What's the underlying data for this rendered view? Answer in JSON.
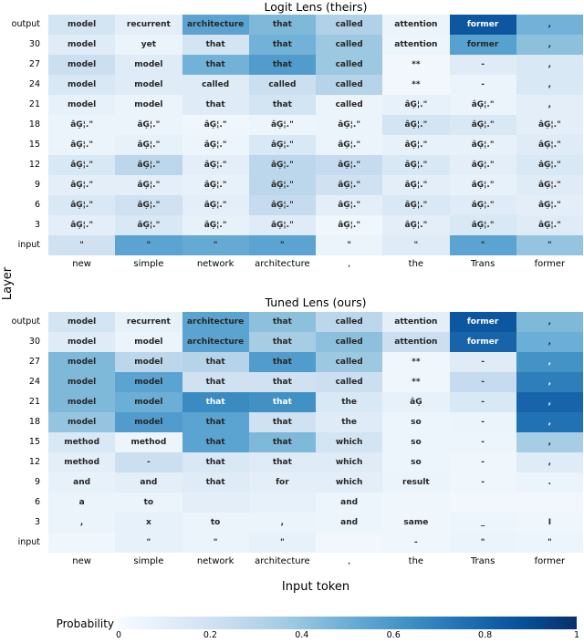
{
  "figure": {
    "ylabel": "Layer",
    "xlabel": "Input token",
    "colorbar": {
      "label": "Probability",
      "ticks": [
        "0",
        "0.2",
        "0.4",
        "0.6",
        "0.8",
        "1"
      ]
    },
    "blues_anchors": [
      "#f7fbff",
      "#deebf7",
      "#c6dbef",
      "#9ecae1",
      "#6baed6",
      "#4292c6",
      "#2171b5",
      "#08519c",
      "#08306b"
    ],
    "text_dark": "#262626",
    "text_light": "#ffffff"
  },
  "chart_data": [
    {
      "type": "heatmap",
      "title": "Logit Lens (theirs)",
      "colormap": "Blues",
      "vmin": 0,
      "vmax": 1,
      "rows": [
        "output",
        "30",
        "27",
        "24",
        "21",
        "18",
        "15",
        "12",
        "9",
        "6",
        "3",
        "input"
      ],
      "columns": [
        "new",
        "simple",
        "network",
        "architecture",
        ",",
        "the",
        "Trans",
        "former"
      ],
      "cells": [
        [
          "model",
          "recurrent",
          "architecture",
          "that",
          "called",
          "attention",
          "former",
          ","
        ],
        [
          "model",
          "yet",
          "that",
          "that",
          "called",
          "attention",
          "former",
          ","
        ],
        [
          "model",
          "model",
          "that",
          "that",
          "called",
          "**",
          "-",
          ","
        ],
        [
          "model",
          "model",
          "called",
          "called",
          "called",
          "**",
          "-",
          ","
        ],
        [
          "model",
          "model",
          "that",
          "that",
          "called",
          "âĢ¦.\"",
          "âĢ¦.\"",
          ","
        ],
        [
          "âĢ¦.\"",
          "âĢ¦.\"",
          "âĢ¦.\"",
          "âĢ¦.\"",
          "âĢ¦.\"",
          "âĢ¦.\"",
          "âĢ¦.\"",
          "âĢ¦.\""
        ],
        [
          "âĢ¦.\"",
          "âĢ¦.\"",
          "âĢ¦.\"",
          "âĢ¦.\"",
          "âĢ¦.\"",
          "âĢ¦.\"",
          "âĢ¦.\"",
          "âĢ¦.\""
        ],
        [
          "âĢ¦.\"",
          "âĢ¦.\"",
          "âĢ¦.\"",
          "âĢ¦.\"",
          "âĢ¦.\"",
          "âĢ¦.\"",
          "âĢ¦.\"",
          "âĢ¦.\""
        ],
        [
          "âĢ¦.\"",
          "âĢ¦.\"",
          "âĢ¦.\"",
          "âĢ¦.\"",
          "âĢ¦.\"",
          "âĢ¦.\"",
          "âĢ¦.\"",
          "âĢ¦.\""
        ],
        [
          "âĢ¦.\"",
          "âĢ¦.\"",
          "âĢ¦.\"",
          "âĢ¦.\"",
          "âĢ¦.\"",
          "âĢ¦.\"",
          "âĢ¦.\"",
          "âĢ¦.\""
        ],
        [
          "âĢ¦.\"",
          "âĢ¦.\"",
          "âĢ¦.\"",
          "âĢ¦.\"",
          "âĢ¦.\"",
          "âĢ¦.\"",
          "âĢ¦.\"",
          "âĢ¦.\""
        ],
        [
          "\"",
          "\"",
          "\"",
          "\"",
          "\"",
          "\"",
          "\"",
          "\""
        ]
      ],
      "values": [
        [
          0.18,
          0.1,
          0.55,
          0.45,
          0.32,
          0.06,
          0.85,
          0.48
        ],
        [
          0.12,
          0.06,
          0.18,
          0.48,
          0.38,
          0.05,
          0.56,
          0.42
        ],
        [
          0.22,
          0.12,
          0.48,
          0.58,
          0.38,
          0.03,
          0.12,
          0.15
        ],
        [
          0.15,
          0.12,
          0.12,
          0.22,
          0.3,
          0.03,
          0.06,
          0.15
        ],
        [
          0.08,
          0.06,
          0.12,
          0.18,
          0.06,
          0.08,
          0.06,
          0.1
        ],
        [
          0.06,
          0.06,
          0.04,
          0.05,
          0.06,
          0.18,
          0.15,
          0.1
        ],
        [
          0.06,
          0.08,
          0.05,
          0.15,
          0.06,
          0.08,
          0.08,
          0.12
        ],
        [
          0.15,
          0.28,
          0.1,
          0.28,
          0.25,
          0.15,
          0.1,
          0.15
        ],
        [
          0.1,
          0.1,
          0.08,
          0.28,
          0.2,
          0.1,
          0.08,
          0.12
        ],
        [
          0.15,
          0.2,
          0.1,
          0.25,
          0.1,
          0.15,
          0.12,
          0.1
        ],
        [
          0.1,
          0.15,
          0.08,
          0.12,
          0.04,
          0.1,
          0.15,
          0.12
        ],
        [
          0.2,
          0.55,
          0.52,
          0.55,
          0.06,
          0.12,
          0.55,
          0.4
        ]
      ]
    },
    {
      "type": "heatmap",
      "title": "Tuned Lens (ours)",
      "colormap": "Blues",
      "vmin": 0,
      "vmax": 1,
      "rows": [
        "output",
        "30",
        "27",
        "24",
        "21",
        "18",
        "15",
        "12",
        "9",
        "6",
        "3",
        "input"
      ],
      "columns": [
        "new",
        "simple",
        "network",
        "architecture",
        ",",
        "the",
        "Trans",
        "former"
      ],
      "cells": [
        [
          "model",
          "recurrent",
          "architecture",
          "that",
          "called",
          "attention",
          "former",
          ","
        ],
        [
          "model",
          "model",
          "architecture",
          "that",
          "called",
          "attention",
          "former",
          ","
        ],
        [
          "model",
          "model",
          "that",
          "that",
          "called",
          "**",
          "-",
          ","
        ],
        [
          "model",
          "model",
          "that",
          "that",
          "called",
          "**",
          "-",
          ","
        ],
        [
          "model",
          "model",
          "that",
          "that",
          "the",
          "âĢ",
          "-",
          ","
        ],
        [
          "model",
          "model",
          "that",
          "that",
          "the",
          "so",
          "-",
          ","
        ],
        [
          "method",
          "method",
          "that",
          "that",
          "which",
          "so",
          "-",
          ","
        ],
        [
          "method",
          "-",
          "that",
          "that",
          "which",
          "so",
          "-",
          ","
        ],
        [
          "and",
          "and",
          "that",
          "for",
          "which",
          "result",
          "-",
          "."
        ],
        [
          "a",
          "to",
          "",
          "",
          "and",
          "",
          "",
          ""
        ],
        [
          ",",
          "x",
          "to",
          ",",
          "and",
          "same",
          "_",
          "I"
        ],
        [
          "",
          "\"",
          "\"",
          "\"",
          "",
          "-",
          "\"",
          "\""
        ]
      ],
      "values": [
        [
          0.18,
          0.08,
          0.55,
          0.42,
          0.28,
          0.1,
          0.85,
          0.45
        ],
        [
          0.12,
          0.06,
          0.55,
          0.35,
          0.42,
          0.22,
          0.8,
          0.5
        ],
        [
          0.45,
          0.28,
          0.3,
          0.58,
          0.38,
          0.04,
          0.12,
          0.62
        ],
        [
          0.45,
          0.55,
          0.2,
          0.2,
          0.22,
          0.04,
          0.25,
          0.7
        ],
        [
          0.45,
          0.5,
          0.65,
          0.63,
          0.15,
          0.08,
          0.15,
          0.8
        ],
        [
          0.4,
          0.58,
          0.55,
          0.2,
          0.12,
          0.05,
          0.06,
          0.75
        ],
        [
          0.15,
          0.05,
          0.55,
          0.45,
          0.18,
          0.05,
          0.05,
          0.35
        ],
        [
          0.1,
          0.22,
          0.15,
          0.12,
          0.12,
          0.05,
          0.04,
          0.12
        ],
        [
          0.08,
          0.1,
          0.12,
          0.1,
          0.1,
          0.06,
          0.04,
          0.06
        ],
        [
          0.06,
          0.06,
          0.1,
          0.08,
          0.05,
          0.04,
          0.03,
          0.03
        ],
        [
          0.06,
          0.08,
          0.06,
          0.06,
          0.05,
          0.04,
          0.05,
          0.04
        ],
        [
          0.04,
          0.08,
          0.06,
          0.08,
          0.03,
          0.04,
          0.06,
          0.05
        ]
      ]
    }
  ]
}
